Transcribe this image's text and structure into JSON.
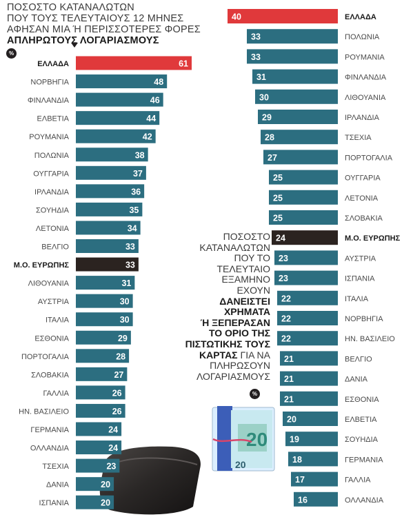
{
  "title": {
    "line1": "ΠΟΣΟΣΤΟ ΚΑΤΑΝΑΛΩΤΩΝ",
    "line2": "ΠΟΥ ΤΟΥΣ ΤΕΛΕΥΤΑΙΟΥΣ 12 ΜΗΝΕΣ",
    "line3": "ΑΦΗΣΑΝ ΜΙΑ Ή ΠΕΡΙΣΣΟΤΕΡΕΣ ΦΟΡΕΣ",
    "line4": "ΑΠΛΗΡΩΤΟΥΣ ΛΟΓΑΡΙΑΣΜΟΥΣ",
    "unit": "%"
  },
  "second_title": {
    "line1": "ΠΟΣΟΣΤΟ",
    "line2": "ΚΑΤΑΝΑΛΩΤΩΝ",
    "line3": "ΠΟΥ ΤΟ",
    "line4": "ΤΕΛΕΥΤΑΙΟ",
    "line5": "ΕΞΑΜΗΝΟ",
    "line6": "ΕΧΟΥΝ",
    "line7": "ΔΑΝΕΙΣΤΕΙ",
    "line8": "ΧΡΗΜΑΤΑ",
    "line9": "Ή ΞΕΠΕΡΑΣΑΝ",
    "line10": "ΤΟ ΟΡΙΟ ΤΗΣ",
    "line11": "ΠΙΣΤΩΤΙΚΗΣ ΤΟΥΣ",
    "line12_bold": "ΚΑΡΤΑΣ",
    "line12_rest": " ΓΙΑ ΝΑ",
    "line13": "ΠΛΗΡΩΣΟΥΝ",
    "line14": "ΛΟΓΑΡΙΑΣΜΟΥΣ",
    "unit": "%"
  },
  "colors": {
    "bar": "#2c6e80",
    "greece": "#e0393b",
    "average": "#2b2320",
    "label": "#4a4a4a"
  },
  "chart_data": [
    {
      "type": "bar",
      "orientation": "horizontal",
      "categories": [
        "ΕΛΛΑΔΑ",
        "ΝΟΡΒΗΓΙΑ",
        "ΦΙΝΛΑΝΔΙΑ",
        "ΕΛΒΕΤΙΑ",
        "ΡΟΥΜΑΝΙΑ",
        "ΠΟΛΩΝΙΑ",
        "ΟΥΓΓΑΡΙΑ",
        "ΙΡΛΑΝΔΙΑ",
        "ΣΟΥΗΔΙΑ",
        "ΛΕΤΟΝΙΑ",
        "ΒΕΛΓΙΟ",
        "Μ.Ο. ΕΥΡΩΠΗΣ",
        "ΛΙΘΟΥΑΝΙΑ",
        "ΑΥΣΤΡΙΑ",
        "ΙΤΑΛΙΑ",
        "ΕΣΘΟΝΙΑ",
        "ΠΟΡΤΟΓΑΛΙΑ",
        "ΣΛΟΒΑΚΙΑ",
        "ΓΑΛΛΙΑ",
        "ΗΝ. ΒΑΣΙΛΕΙΟ",
        "ΓΕΡΜΑΝΙΑ",
        "ΟΛΛΑΝΔΙΑ",
        "ΤΣΕΧΙΑ",
        "ΔΑΝΙΑ",
        "ΙΣΠΑΝΙΑ"
      ],
      "values": [
        61,
        48,
        46,
        44,
        42,
        38,
        37,
        36,
        35,
        34,
        33,
        33,
        31,
        30,
        30,
        29,
        28,
        27,
        26,
        26,
        24,
        24,
        23,
        20,
        20
      ],
      "highlight": {
        "ΕΛΛΑΔΑ": "greece",
        "Μ.Ο. ΕΥΡΩΠΗΣ": "average"
      },
      "bold_labels": [
        "ΕΛΛΑΔΑ",
        "Μ.Ο. ΕΥΡΩΠΗΣ"
      ],
      "title": "ΠΟΣΟΣΤΟ ΚΑΤΑΝΑΛΩΤΩΝ ΠΟΥ ΤΟΥΣ ΤΕΛΕΥΤΑΙΟΥΣ 12 ΜΗΝΕΣ ΑΦΗΣΑΝ ΜΙΑ Ή ΠΕΡΙΣΣΟΤΕΡΕΣ ΦΟΡΕΣ ΑΠΛΗΡΩΤΟΥΣ ΛΟΓΑΡΙΑΣΜΟΥΣ",
      "unit": "%",
      "label_side": "left",
      "data_labels": "inside-end"
    },
    {
      "type": "bar",
      "orientation": "horizontal",
      "categories": [
        "ΕΛΛΑΔΑ",
        "ΠΟΛΩΝΙΑ",
        "ΡΟΥΜΑΝΙΑ",
        "ΦΙΝΛΑΝΔΙΑ",
        "ΛΙΘΟΥΑΝΙΑ",
        "ΙΡΛΑΝΔΙΑ",
        "ΤΣΕΧΙΑ",
        "ΠΟΡΤΟΓΑΛΙΑ",
        "ΟΥΓΓΑΡΙΑ",
        "ΛΕΤΟΝΙΑ",
        "ΣΛΟΒΑΚΙΑ",
        "Μ.Ο. ΕΥΡΩΠΗΣ",
        "ΑΥΣΤΡΙΑ",
        "ΙΣΠΑΝΙΑ",
        "ΙΤΑΛΙΑ",
        "ΝΟΡΒΗΓΙΑ",
        "ΗΝ. ΒΑΣΙΛΕΙΟ",
        "ΒΕΛΓΙΟ",
        "ΔΑΝΙΑ",
        "ΕΣΘΟΝΙΑ",
        "ΕΛΒΕΤΙΑ",
        "ΣΟΥΗΔΙΑ",
        "ΓΕΡΜΑΝΙΑ",
        "ΓΑΛΛΙΑ",
        "ΟΛΛΑΝΔΙΑ"
      ],
      "values": [
        40,
        33,
        33,
        31,
        30,
        29,
        28,
        27,
        25,
        25,
        25,
        24,
        23,
        23,
        22,
        22,
        22,
        21,
        21,
        21,
        20,
        19,
        18,
        17,
        16
      ],
      "highlight": {
        "ΕΛΛΑΔΑ": "greece",
        "Μ.Ο. ΕΥΡΩΠΗΣ": "average"
      },
      "bold_labels": [
        "ΕΛΛΑΔΑ",
        "Μ.Ο. ΕΥΡΩΠΗΣ"
      ],
      "title": "ΠΟΣΟΣΤΟ ΚΑΤΑΝΑΛΩΤΩΝ ΠΟΥ ΤΟ ΤΕΛΕΥΤΑΙΟ ΕΞΑΜΗΝΟ ΕΧΟΥΝ ΔΑΝΕΙΣΤΕΙ ΧΡΗΜΑΤΑ Ή ΞΕΠΕΡΑΣΑΝ ΤΟ ΟΡΙΟ ΤΗΣ ΠΙΣΤΩΤΙΚΗΣ ΤΟΥΣ ΚΑΡΤΑΣ ΓΙΑ ΝΑ ΠΛΗΡΩΣΟΥΝ ΛΟΓΑΡΙΑΣΜΟΥΣ",
      "unit": "%",
      "label_side": "right",
      "data_labels": "inside-start"
    }
  ]
}
